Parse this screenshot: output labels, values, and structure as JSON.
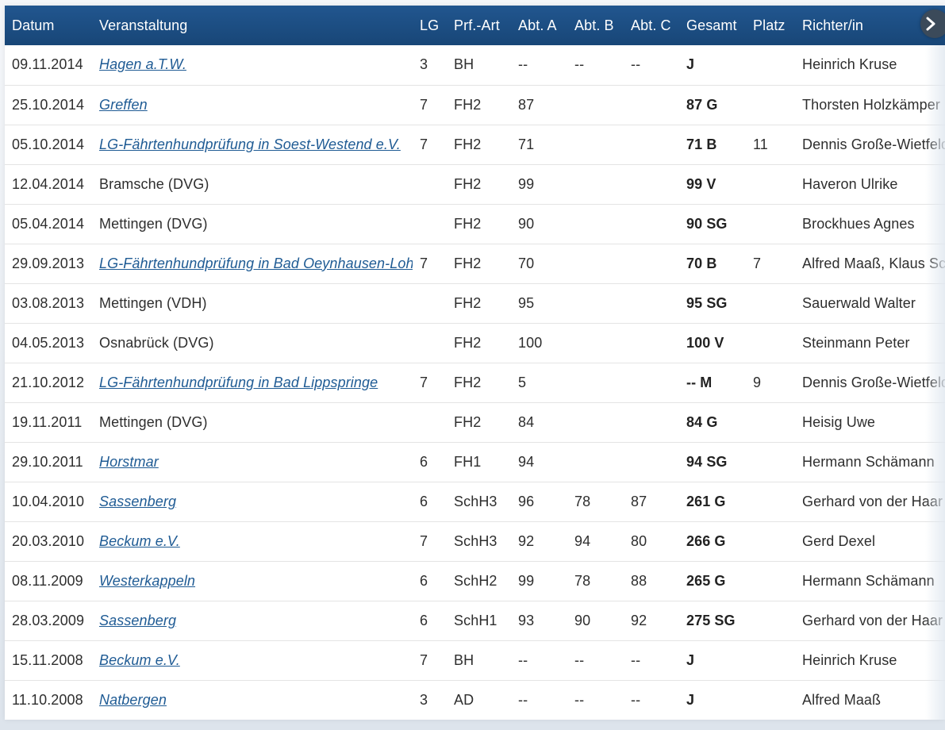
{
  "table": {
    "headers": [
      "Datum",
      "Veranstaltung",
      "LG",
      "Prf.-Art",
      "Abt. A",
      "Abt. B",
      "Abt. C",
      "Gesamt",
      "Platz",
      "Richter/in"
    ],
    "rows": [
      {
        "datum": "09.11.2014",
        "event": "Hagen a.T.W.",
        "link": true,
        "lg": "3",
        "art": "BH",
        "a": "--",
        "b": "--",
        "c": "--",
        "gesamt": "J",
        "platz": "",
        "richter": "Heinrich Kruse"
      },
      {
        "datum": "25.10.2014",
        "event": "Greffen",
        "link": true,
        "lg": "7",
        "art": "FH2",
        "a": "87",
        "b": "",
        "c": "",
        "gesamt": "87 G",
        "platz": "",
        "richter": "Thorsten Holzkämper"
      },
      {
        "datum": "05.10.2014",
        "event": "LG-Fährtenhundprüfung in Soest-Westend e.V.",
        "link": true,
        "lg": "7",
        "art": "FH2",
        "a": "71",
        "b": "",
        "c": "",
        "gesamt": "71 B",
        "platz": "11",
        "richter": "Dennis Große-Wietfeld,"
      },
      {
        "datum": "12.04.2014",
        "event": "Bramsche (DVG)",
        "link": false,
        "lg": "",
        "art": "FH2",
        "a": "99",
        "b": "",
        "c": "",
        "gesamt": "99 V",
        "platz": "",
        "richter": "Haveron Ulrike"
      },
      {
        "datum": "05.04.2014",
        "event": "Mettingen (DVG)",
        "link": false,
        "lg": "",
        "art": "FH2",
        "a": "90",
        "b": "",
        "c": "",
        "gesamt": "90 SG",
        "platz": "",
        "richter": "Brockhues Agnes"
      },
      {
        "datum": "29.09.2013",
        "event": "LG-Fährtenhundprüfung in Bad Oeynhausen-Lohe",
        "link": true,
        "lg": "7",
        "art": "FH2",
        "a": "70",
        "b": "",
        "c": "",
        "gesamt": "70 B",
        "platz": "7",
        "richter": "Alfred Maaß, Klaus Sch"
      },
      {
        "datum": "03.08.2013",
        "event": "Mettingen (VDH)",
        "link": false,
        "lg": "",
        "art": "FH2",
        "a": "95",
        "b": "",
        "c": "",
        "gesamt": "95 SG",
        "platz": "",
        "richter": "Sauerwald Walter"
      },
      {
        "datum": "04.05.2013",
        "event": "Osnabrück (DVG)",
        "link": false,
        "lg": "",
        "art": "FH2",
        "a": "100",
        "b": "",
        "c": "",
        "gesamt": "100 V",
        "platz": "",
        "richter": "Steinmann Peter"
      },
      {
        "datum": "21.10.2012",
        "event": "LG-Fährtenhundprüfung in Bad Lippspringe",
        "link": true,
        "lg": "7",
        "art": "FH2",
        "a": "5",
        "b": "",
        "c": "",
        "gesamt": "-- M",
        "platz": "9",
        "richter": "Dennis Große-Wietfeld,"
      },
      {
        "datum": "19.11.2011",
        "event": "Mettingen (DVG)",
        "link": false,
        "lg": "",
        "art": "FH2",
        "a": "84",
        "b": "",
        "c": "",
        "gesamt": "84 G",
        "platz": "",
        "richter": "Heisig Uwe"
      },
      {
        "datum": "29.10.2011",
        "event": "Horstmar",
        "link": true,
        "lg": "6",
        "art": "FH1",
        "a": "94",
        "b": "",
        "c": "",
        "gesamt": "94 SG",
        "platz": "",
        "richter": "Hermann Schämann"
      },
      {
        "datum": "10.04.2010",
        "event": "Sassenberg",
        "link": true,
        "lg": "6",
        "art": "SchH3",
        "a": "96",
        "b": "78",
        "c": "87",
        "gesamt": "261 G",
        "platz": "",
        "richter": "Gerhard von der Haar"
      },
      {
        "datum": "20.03.2010",
        "event": "Beckum e.V.",
        "link": true,
        "lg": "7",
        "art": "SchH3",
        "a": "92",
        "b": "94",
        "c": "80",
        "gesamt": "266 G",
        "platz": "",
        "richter": "Gerd Dexel"
      },
      {
        "datum": "08.11.2009",
        "event": "Westerkappeln",
        "link": true,
        "lg": "6",
        "art": "SchH2",
        "a": "99",
        "b": "78",
        "c": "88",
        "gesamt": "265 G",
        "platz": "",
        "richter": "Hermann Schämann"
      },
      {
        "datum": "28.03.2009",
        "event": "Sassenberg",
        "link": true,
        "lg": "6",
        "art": "SchH1",
        "a": "93",
        "b": "90",
        "c": "92",
        "gesamt": "275 SG",
        "platz": "",
        "richter": "Gerhard von der Haar"
      },
      {
        "datum": "15.11.2008",
        "event": "Beckum e.V.",
        "link": true,
        "lg": "7",
        "art": "BH",
        "a": "--",
        "b": "--",
        "c": "--",
        "gesamt": "J",
        "platz": "",
        "richter": "Heinrich Kruse"
      },
      {
        "datum": "11.10.2008",
        "event": "Natbergen",
        "link": true,
        "lg": "3",
        "art": "AD",
        "a": "--",
        "b": "--",
        "c": "--",
        "gesamt": "J",
        "platz": "",
        "richter": "Alfred Maaß"
      }
    ]
  },
  "scroll_button": {
    "icon": "chevron-right-icon"
  },
  "colors": {
    "header_bg": "#1c4f86",
    "link": "#1f5b94",
    "row_border": "#e4e4e4"
  }
}
